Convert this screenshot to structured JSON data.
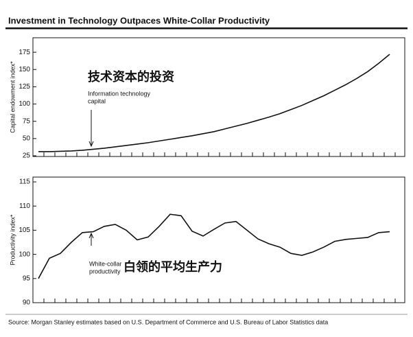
{
  "title": "Investment in Technology Outpaces White-Collar Productivity",
  "source": "Source: Morgan Stanley estimates based on U.S. Department of Commerce and U.S. Bureau of Labor Statistics data",
  "chart_data": [
    {
      "type": "line",
      "y_label": "Capital endowment index*",
      "color": "#111111",
      "annotations": [
        {
          "text": "技术资本的投资"
        },
        {
          "lines": [
            "Information technology",
            "capital"
          ]
        }
      ],
      "categories": [
        null,
        null,
        null,
        null,
        null,
        null,
        null,
        null,
        null,
        null,
        null,
        null,
        null,
        null,
        null,
        null,
        null,
        null,
        null,
        null,
        null,
        null,
        null,
        null,
        null,
        null,
        null,
        null,
        null,
        null,
        null,
        null,
        null
      ],
      "values": [
        31,
        31,
        31.5,
        32,
        33,
        34.5,
        36,
        38,
        40,
        42,
        44,
        46.5,
        49,
        51.5,
        54,
        57,
        60,
        64,
        68,
        72,
        76.5,
        81,
        86,
        92,
        98,
        105,
        112,
        120,
        128,
        137,
        147,
        159,
        172
      ],
      "ylim": [
        25,
        195
      ],
      "yticks": [
        25,
        50,
        75,
        100,
        125,
        150,
        175
      ]
    },
    {
      "type": "line",
      "y_label": "Productivity index*",
      "color": "#111111",
      "annotations": [
        {
          "text": "白领的平均生产力"
        },
        {
          "lines": [
            "White-collar",
            "productivity"
          ]
        }
      ],
      "categories": [
        null,
        null,
        null,
        null,
        null,
        null,
        null,
        null,
        null,
        null,
        null,
        null,
        null,
        null,
        null,
        null,
        null,
        null,
        null,
        null,
        null,
        null,
        null,
        null,
        null,
        null,
        null,
        null,
        null,
        null,
        null,
        null,
        null
      ],
      "values": [
        95,
        99.2,
        100.2,
        102.5,
        104.5,
        104.7,
        105.8,
        106.2,
        105,
        103,
        103.6,
        105.8,
        108.3,
        108,
        104.8,
        103.8,
        105.2,
        106.5,
        106.8,
        105,
        103.2,
        102.2,
        101.5,
        100.2,
        99.8,
        100.5,
        101.5,
        102.7,
        103.1,
        103.3,
        103.5,
        104.5,
        104.7
      ],
      "ylim": [
        90,
        116
      ],
      "yticks": [
        90,
        95,
        100,
        105,
        110,
        115
      ]
    }
  ]
}
